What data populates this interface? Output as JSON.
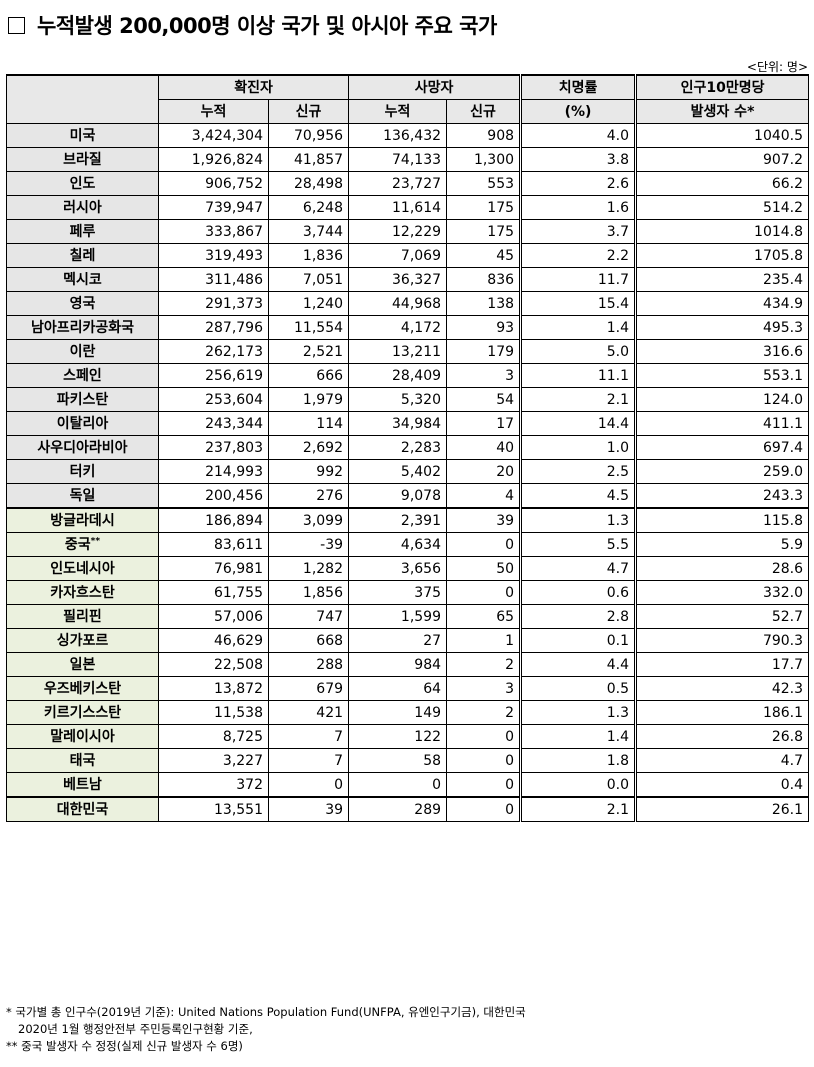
{
  "title": "누적발생 200,000명 이상 국가 및 아시아 주요 국가",
  "unit": "<단위: 명>",
  "headers": {
    "confirmed": "확진자",
    "deaths": "사망자",
    "cfr": "치명률",
    "cfr_unit": "(%)",
    "per100k": "인구10만명당",
    "per100k_sub": "발생자 수*",
    "cumulative": "누적",
    "new": "신규"
  },
  "rows": [
    {
      "country": "미국",
      "c_cum": "3,424,304",
      "c_new": "70,956",
      "d_cum": "136,432",
      "d_new": "908",
      "cfr": "4.0",
      "per": "1040.5",
      "group": "main"
    },
    {
      "country": "브라질",
      "c_cum": "1,926,824",
      "c_new": "41,857",
      "d_cum": "74,133",
      "d_new": "1,300",
      "cfr": "3.8",
      "per": "907.2",
      "group": "main"
    },
    {
      "country": "인도",
      "c_cum": "906,752",
      "c_new": "28,498",
      "d_cum": "23,727",
      "d_new": "553",
      "cfr": "2.6",
      "per": "66.2",
      "group": "main"
    },
    {
      "country": "러시아",
      "c_cum": "739,947",
      "c_new": "6,248",
      "d_cum": "11,614",
      "d_new": "175",
      "cfr": "1.6",
      "per": "514.2",
      "group": "main"
    },
    {
      "country": "페루",
      "c_cum": "333,867",
      "c_new": "3,744",
      "d_cum": "12,229",
      "d_new": "175",
      "cfr": "3.7",
      "per": "1014.8",
      "group": "main"
    },
    {
      "country": "칠레",
      "c_cum": "319,493",
      "c_new": "1,836",
      "d_cum": "7,069",
      "d_new": "45",
      "cfr": "2.2",
      "per": "1705.8",
      "group": "main"
    },
    {
      "country": "멕시코",
      "c_cum": "311,486",
      "c_new": "7,051",
      "d_cum": "36,327",
      "d_new": "836",
      "cfr": "11.7",
      "per": "235.4",
      "group": "main"
    },
    {
      "country": "영국",
      "c_cum": "291,373",
      "c_new": "1,240",
      "d_cum": "44,968",
      "d_new": "138",
      "cfr": "15.4",
      "per": "434.9",
      "group": "main"
    },
    {
      "country": "남아프리카공화국",
      "c_cum": "287,796",
      "c_new": "11,554",
      "d_cum": "4,172",
      "d_new": "93",
      "cfr": "1.4",
      "per": "495.3",
      "group": "main"
    },
    {
      "country": "이란",
      "c_cum": "262,173",
      "c_new": "2,521",
      "d_cum": "13,211",
      "d_new": "179",
      "cfr": "5.0",
      "per": "316.6",
      "group": "main"
    },
    {
      "country": "스페인",
      "c_cum": "256,619",
      "c_new": "666",
      "d_cum": "28,409",
      "d_new": "3",
      "cfr": "11.1",
      "per": "553.1",
      "group": "main"
    },
    {
      "country": "파키스탄",
      "c_cum": "253,604",
      "c_new": "1,979",
      "d_cum": "5,320",
      "d_new": "54",
      "cfr": "2.1",
      "per": "124.0",
      "group": "main"
    },
    {
      "country": "이탈리아",
      "c_cum": "243,344",
      "c_new": "114",
      "d_cum": "34,984",
      "d_new": "17",
      "cfr": "14.4",
      "per": "411.1",
      "group": "main"
    },
    {
      "country": "사우디아라비아",
      "c_cum": "237,803",
      "c_new": "2,692",
      "d_cum": "2,283",
      "d_new": "40",
      "cfr": "1.0",
      "per": "697.4",
      "group": "main"
    },
    {
      "country": "터키",
      "c_cum": "214,993",
      "c_new": "992",
      "d_cum": "5,402",
      "d_new": "20",
      "cfr": "2.5",
      "per": "259.0",
      "group": "main"
    },
    {
      "country": "독일",
      "c_cum": "200,456",
      "c_new": "276",
      "d_cum": "9,078",
      "d_new": "4",
      "cfr": "4.5",
      "per": "243.3",
      "group": "main"
    },
    {
      "country": "방글라데시",
      "c_cum": "186,894",
      "c_new": "3,099",
      "d_cum": "2,391",
      "d_new": "39",
      "cfr": "1.3",
      "per": "115.8",
      "group": "asia"
    },
    {
      "country": "중국",
      "sup": "**",
      "c_cum": "83,611",
      "c_new": "-39",
      "d_cum": "4,634",
      "d_new": "0",
      "cfr": "5.5",
      "per": "5.9",
      "group": "asia"
    },
    {
      "country": "인도네시아",
      "c_cum": "76,981",
      "c_new": "1,282",
      "d_cum": "3,656",
      "d_new": "50",
      "cfr": "4.7",
      "per": "28.6",
      "group": "asia"
    },
    {
      "country": "카자흐스탄",
      "c_cum": "61,755",
      "c_new": "1,856",
      "d_cum": "375",
      "d_new": "0",
      "cfr": "0.6",
      "per": "332.0",
      "group": "asia"
    },
    {
      "country": "필리핀",
      "c_cum": "57,006",
      "c_new": "747",
      "d_cum": "1,599",
      "d_new": "65",
      "cfr": "2.8",
      "per": "52.7",
      "group": "asia"
    },
    {
      "country": "싱가포르",
      "c_cum": "46,629",
      "c_new": "668",
      "d_cum": "27",
      "d_new": "1",
      "cfr": "0.1",
      "per": "790.3",
      "group": "asia"
    },
    {
      "country": "일본",
      "c_cum": "22,508",
      "c_new": "288",
      "d_cum": "984",
      "d_new": "2",
      "cfr": "4.4",
      "per": "17.7",
      "group": "asia"
    },
    {
      "country": "우즈베키스탄",
      "c_cum": "13,872",
      "c_new": "679",
      "d_cum": "64",
      "d_new": "3",
      "cfr": "0.5",
      "per": "42.3",
      "group": "asia"
    },
    {
      "country": "키르기스스탄",
      "c_cum": "11,538",
      "c_new": "421",
      "d_cum": "149",
      "d_new": "2",
      "cfr": "1.3",
      "per": "186.1",
      "group": "asia"
    },
    {
      "country": "말레이시아",
      "c_cum": "8,725",
      "c_new": "7",
      "d_cum": "122",
      "d_new": "0",
      "cfr": "1.4",
      "per": "26.8",
      "group": "asia"
    },
    {
      "country": "태국",
      "c_cum": "3,227",
      "c_new": "7",
      "d_cum": "58",
      "d_new": "0",
      "cfr": "1.8",
      "per": "4.7",
      "group": "asia"
    },
    {
      "country": "베트남",
      "c_cum": "372",
      "c_new": "0",
      "d_cum": "0",
      "d_new": "0",
      "cfr": "0.0",
      "per": "0.4",
      "group": "asia"
    },
    {
      "country": "대한민국",
      "c_cum": "13,551",
      "c_new": "39",
      "d_cum": "289",
      "d_new": "0",
      "cfr": "2.1",
      "per": "26.1",
      "group": "korea"
    }
  ],
  "notes": [
    "* 국가별 총 인구수(2019년 기준): United Nations Population Fund(UNFPA, 유엔인구기금), 대한민국",
    "2020년 1월 행정안전부 주민등록인구현황 기준,",
    "** 중국 발생자 수 정정(실제 신규 발생자 수 6명)"
  ]
}
